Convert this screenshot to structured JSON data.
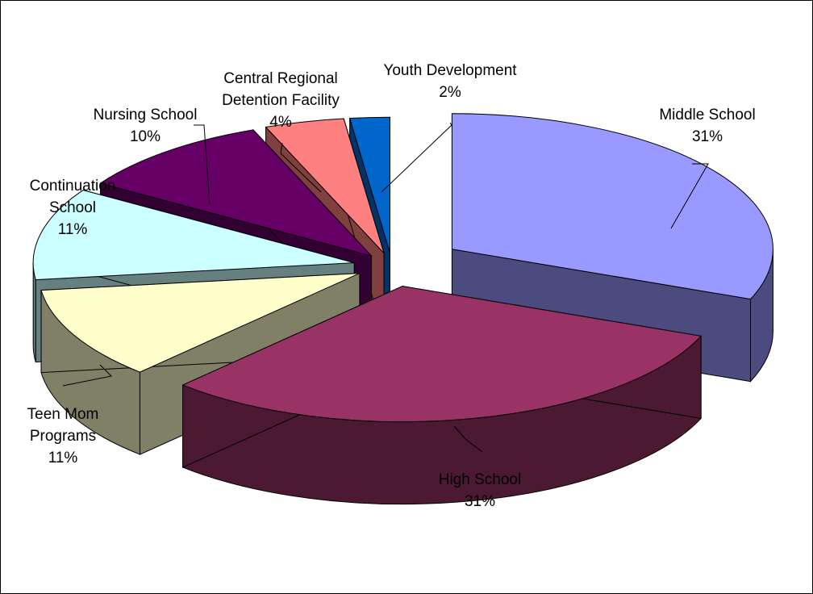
{
  "chart_data": {
    "type": "pie",
    "style": "3d-exploded",
    "title": "",
    "legend": "none",
    "slices": [
      {
        "label": "Middle School",
        "percent_label": "31%",
        "value": 31,
        "top_color": "#9999FF",
        "side_color": "#4B4B80"
      },
      {
        "label": "High School",
        "percent_label": "31%",
        "value": 31,
        "top_color": "#993366",
        "side_color": "#4C1933"
      },
      {
        "label": "Teen Mom Programs",
        "percent_label": "11%",
        "value": 11,
        "top_color": "#FFFFCC",
        "side_color": "#808066"
      },
      {
        "label": "Continuation School",
        "percent_label": "11%",
        "value": 11,
        "top_color": "#CCFFFF",
        "side_color": "#668080"
      },
      {
        "label": "Nursing School",
        "percent_label": "10%",
        "value": 10,
        "top_color": "#660066",
        "side_color": "#330033"
      },
      {
        "label": "Central Regional Detention Facility",
        "percent_label": "4%",
        "value": 4,
        "top_color": "#FF8080",
        "side_color": "#804040"
      },
      {
        "label": "Youth Development",
        "percent_label": "2%",
        "value": 2,
        "top_color": "#0066CC",
        "side_color": "#003366"
      }
    ]
  }
}
